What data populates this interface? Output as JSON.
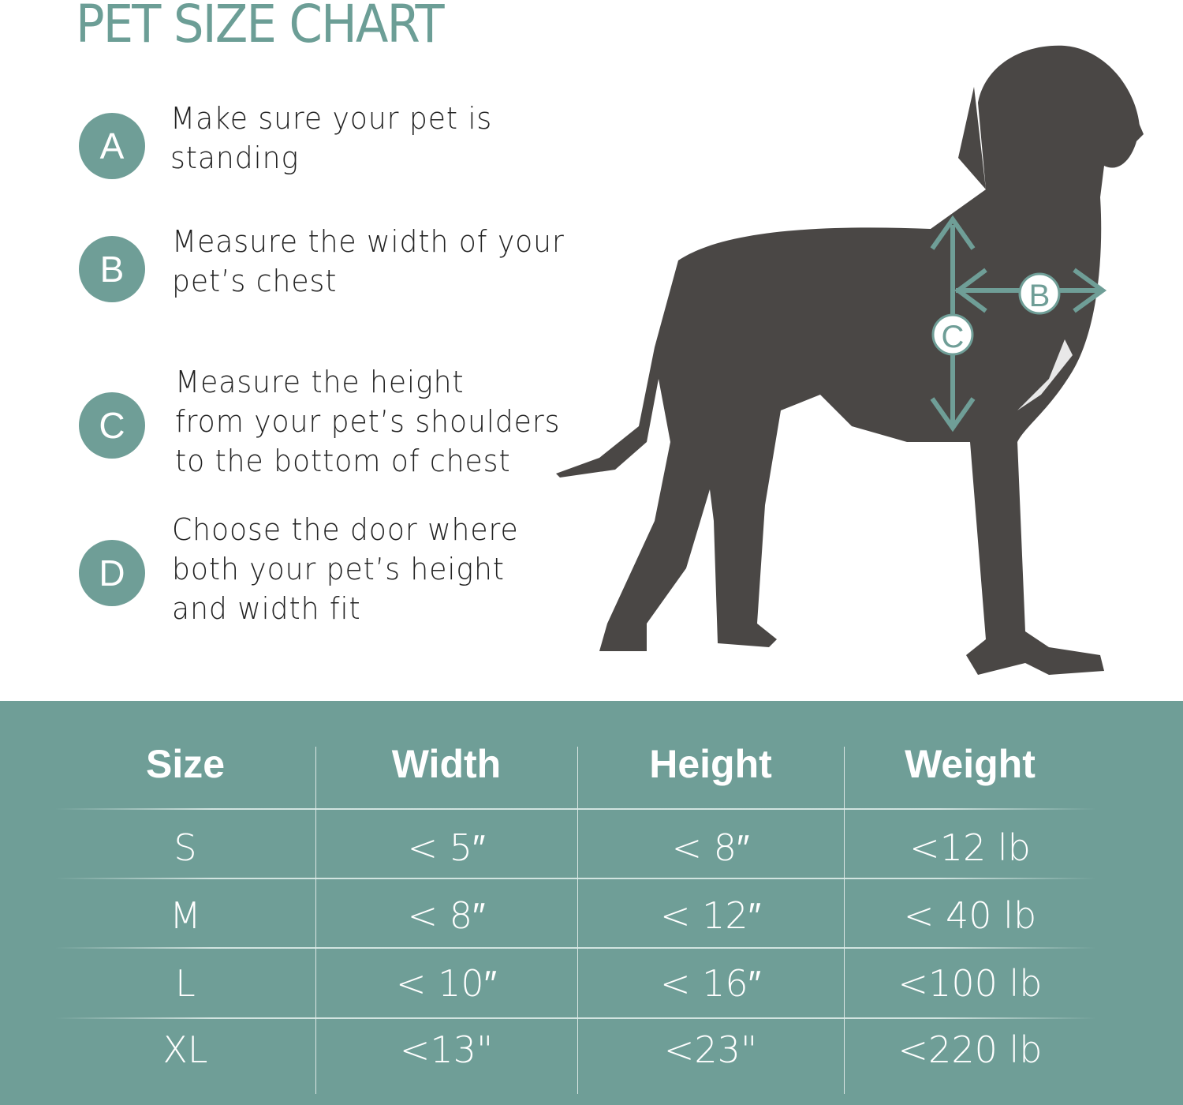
{
  "title": "PET SIZE CHART",
  "accent_color": "#6f9e97",
  "steps": [
    {
      "letter": "A",
      "text": "Make sure your pet is\nstanding"
    },
    {
      "letter": "B",
      "text": "Measure the width of your\npet’s chest"
    },
    {
      "letter": "C",
      "text": "Measure the height\nfrom your pet’s shoulders\nto the bottom of chest"
    },
    {
      "letter": "D",
      "text": "Choose the door where\nboth your pet’s height\nand width fit"
    }
  ],
  "dog_markers": {
    "width": "B",
    "height": "C"
  },
  "table": {
    "headers": [
      "Size",
      "Width",
      "Height",
      "Weight"
    ],
    "rows": [
      [
        "S",
        "< 5″",
        "< 8″",
        "<12 lb"
      ],
      [
        "M",
        "< 8″",
        "< 12″",
        "< 40 lb"
      ],
      [
        "L",
        "< 10″",
        "< 16″",
        "<100 lb"
      ],
      [
        "XL",
        "<13\"",
        "<23\"",
        "<220 lb"
      ]
    ]
  }
}
